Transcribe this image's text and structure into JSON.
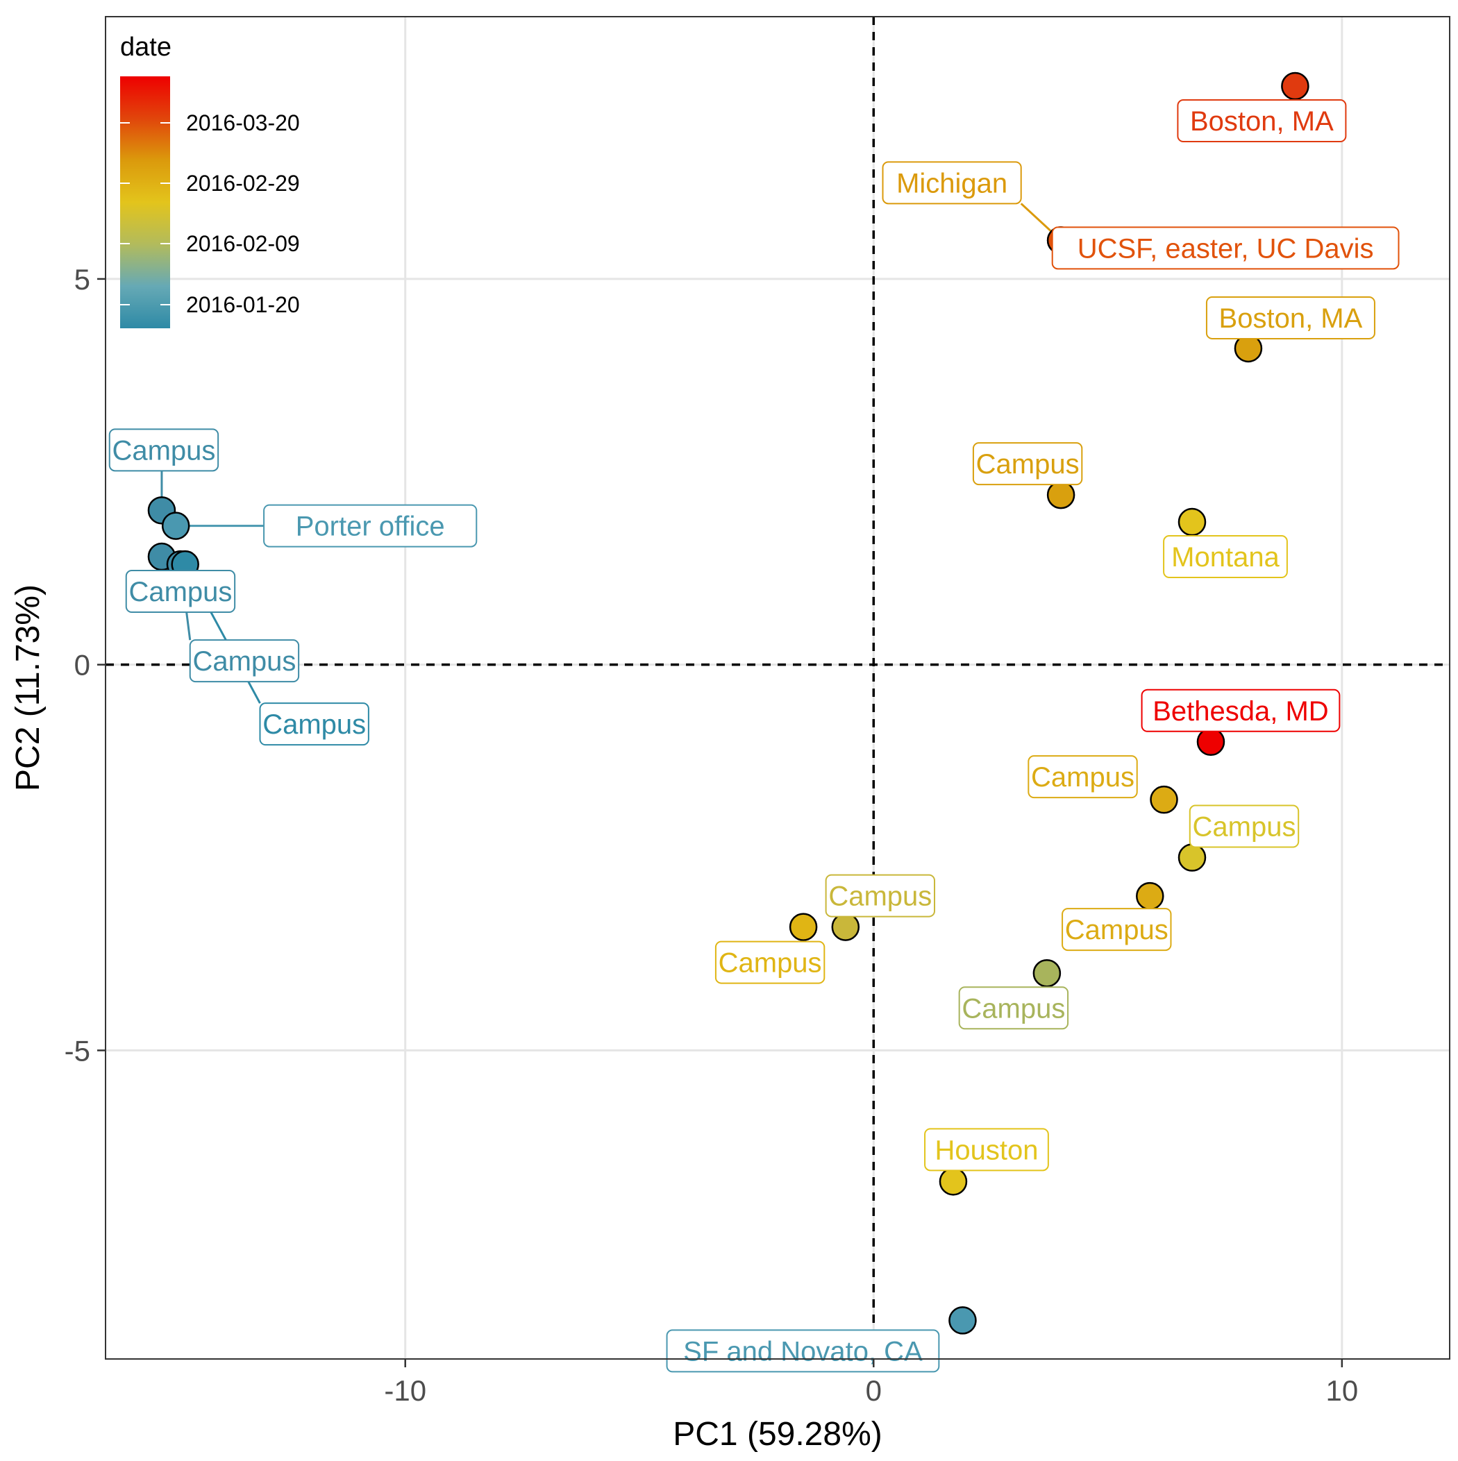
{
  "chart_data": {
    "type": "scatter",
    "xlabel": "PC1 (59.28%)",
    "ylabel": "PC2 (11.73%)",
    "xlim": [
      -16.4,
      12.3
    ],
    "ylim": [
      -9.0,
      8.4
    ],
    "x_ticks": [
      -10,
      0,
      10
    ],
    "x_tick_labels": [
      "-10",
      "0",
      "10"
    ],
    "y_ticks": [
      -5,
      0,
      5
    ],
    "y_tick_labels": [
      "-5",
      "0",
      "5"
    ],
    "grid": true,
    "reference_lines": {
      "x": 0,
      "y": 0,
      "style": "dashed"
    },
    "legend": {
      "title": "date",
      "placement": "top-left inside",
      "type": "colorbar",
      "labels": [
        "2016-03-20",
        "2016-02-29",
        "2016-02-09",
        "2016-01-20"
      ],
      "colors": [
        "#ee0000",
        "#e1450b",
        "#db9a0c",
        "#e3c41c",
        "#b2bb5c",
        "#66a9b5",
        "#2e8aa6"
      ]
    },
    "points": [
      {
        "label": "Boston, MA",
        "x": 9.0,
        "y": 7.5,
        "color": "#e03a0f"
      },
      {
        "label": "Michigan",
        "x": 4.0,
        "y": 5.5,
        "color": "#db9a0c"
      },
      {
        "label": "UCSF, easter, UC Davis",
        "x": 4.0,
        "y": 5.5,
        "color": "#e1520b"
      },
      {
        "label": "Boston, MA",
        "x": 8.0,
        "y": 4.1,
        "color": "#d9a00e"
      },
      {
        "label": "Campus",
        "x": 4.0,
        "y": 2.2,
        "color": "#d9a00e"
      },
      {
        "label": "Montana",
        "x": 6.8,
        "y": 1.85,
        "color": "#e3c41c"
      },
      {
        "label": "Campus",
        "x": -15.2,
        "y": 2.0,
        "color": "#3f8ca6"
      },
      {
        "label": "Porter office",
        "x": -14.9,
        "y": 1.8,
        "color": "#4a98b0"
      },
      {
        "label": "Campus",
        "x": -15.2,
        "y": 1.4,
        "color": "#3f8ca6"
      },
      {
        "label": "Campus",
        "x": -14.8,
        "y": 1.3,
        "color": "#3f8ca6"
      },
      {
        "label": "Campus",
        "x": -14.7,
        "y": 1.3,
        "color": "#2e8aa6"
      },
      {
        "label": "Bethesda, MD",
        "x": 7.2,
        "y": -1.0,
        "color": "#ee0000"
      },
      {
        "label": "Campus",
        "x": 6.2,
        "y": -1.75,
        "color": "#dcab14"
      },
      {
        "label": "Campus",
        "x": 6.8,
        "y": -2.5,
        "color": "#d8c42a"
      },
      {
        "label": "Campus",
        "x": 5.9,
        "y": -3.0,
        "color": "#dcab14"
      },
      {
        "label": "Campus",
        "x": -0.6,
        "y": -3.4,
        "color": "#c9b73a"
      },
      {
        "label": "Campus",
        "x": -1.5,
        "y": -3.4,
        "color": "#e0b514"
      },
      {
        "label": "Campus",
        "x": 3.7,
        "y": -4.0,
        "color": "#a8b45c"
      },
      {
        "label": "Houston",
        "x": 1.7,
        "y": -6.7,
        "color": "#e3c41c"
      },
      {
        "label": "SF and Novato, CA",
        "x": 1.9,
        "y": -8.5,
        "color": "#4a98b0"
      }
    ]
  }
}
